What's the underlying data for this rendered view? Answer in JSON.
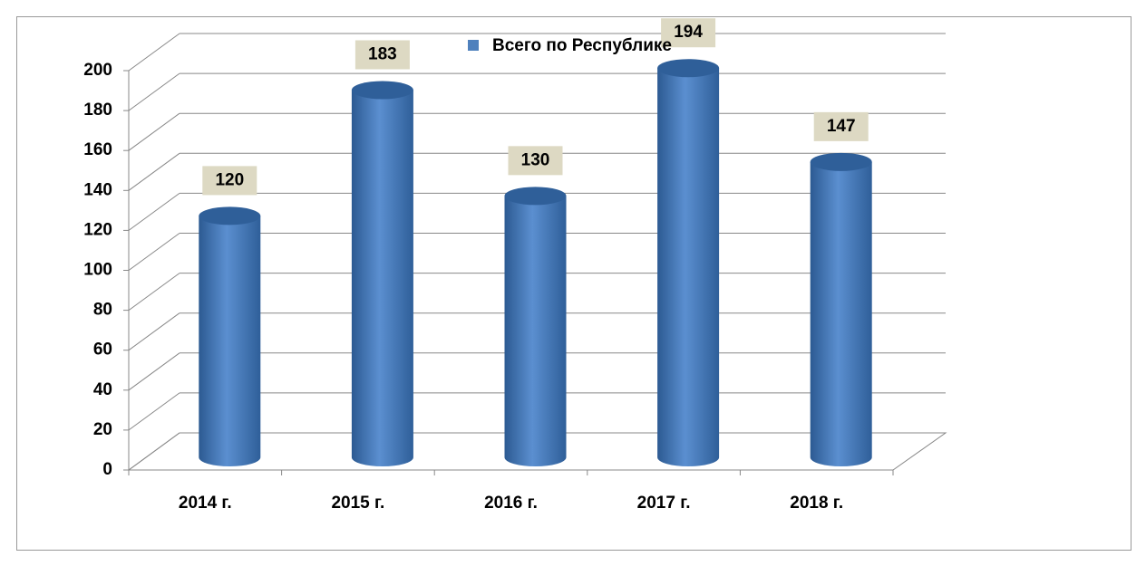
{
  "chart_data": {
    "type": "bar3d",
    "categories": [
      "2014 г.",
      "2015 г.",
      "2016 г.",
      "2017 г.",
      "2018 г."
    ],
    "series": [
      {
        "name": "Всего по Республике",
        "color": "#4f81bd",
        "values": [
          120,
          183,
          130,
          194,
          147
        ]
      }
    ],
    "ylim": [
      0,
      200
    ],
    "yticks": [
      0,
      20,
      40,
      60,
      80,
      100,
      120,
      140,
      160,
      180,
      200
    ],
    "grid": true,
    "legend": "top"
  }
}
